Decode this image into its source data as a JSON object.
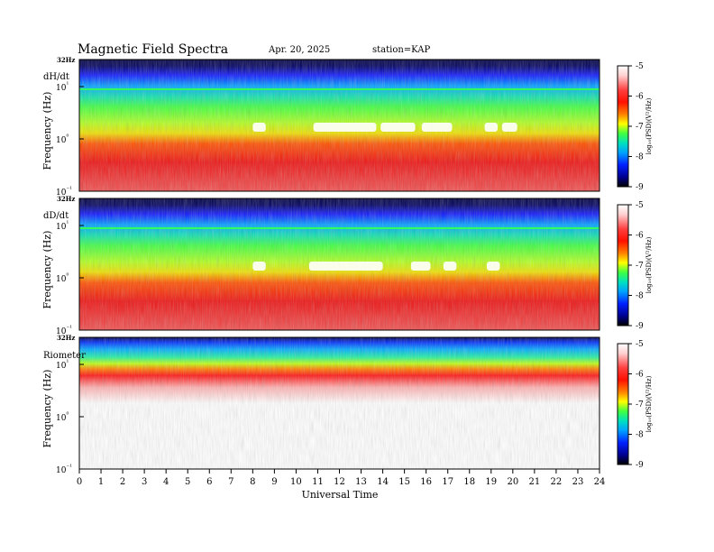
{
  "header": {
    "title": "Magnetic Field Spectra",
    "date": "Apr. 20, 2025",
    "station": "station=KAP"
  },
  "chart_data": [
    {
      "type": "heatmap",
      "panel_label": "dH/dt",
      "ylabel": "Frequency (Hz)",
      "y_scale": "log",
      "y_top_label": "32Hz",
      "y_ticks": [
        "10¹",
        "10⁰",
        "10⁻¹"
      ],
      "xlim": [
        0,
        24
      ],
      "colorbar": {
        "label": "log₁₀(PSD)(V²/Hz)",
        "ticks": [
          "-5",
          "-6",
          "-7",
          "-8",
          "-9"
        ],
        "range": [
          -9,
          -5
        ]
      },
      "features": [
        {
          "start": 8.0,
          "end": 8.6,
          "level": "white"
        },
        {
          "start": 10.8,
          "end": 13.7,
          "level": "white"
        },
        {
          "start": 13.9,
          "end": 15.5,
          "level": "white"
        },
        {
          "start": 15.8,
          "end": 17.2,
          "level": "white"
        },
        {
          "start": 18.7,
          "end": 19.3,
          "level": "white"
        },
        {
          "start": 19.5,
          "end": 20.2,
          "level": "white"
        }
      ]
    },
    {
      "type": "heatmap",
      "panel_label": "dD/dt",
      "ylabel": "Frequency (Hz)",
      "y_scale": "log",
      "y_top_label": "32Hz",
      "y_ticks": [
        "10¹",
        "10⁰",
        "10⁻¹"
      ],
      "xlim": [
        0,
        24
      ],
      "colorbar": {
        "label": "log₁₀(PSD)(V²/Hz)",
        "ticks": [
          "-5",
          "-6",
          "-7",
          "-8",
          "-9"
        ],
        "range": [
          -9,
          -5
        ]
      },
      "features": [
        {
          "start": 8.0,
          "end": 8.6,
          "level": "white"
        },
        {
          "start": 10.6,
          "end": 14.0,
          "level": "white"
        },
        {
          "start": 15.3,
          "end": 16.2,
          "level": "white"
        },
        {
          "start": 16.8,
          "end": 17.4,
          "level": "white"
        },
        {
          "start": 18.8,
          "end": 19.4,
          "level": "white"
        }
      ]
    },
    {
      "type": "heatmap",
      "panel_label": "Riometer",
      "ylabel": "Frequency (Hz)",
      "y_scale": "log",
      "y_top_label": "32Hz",
      "y_ticks": [
        "10¹",
        "10⁰",
        "10⁻¹"
      ],
      "xlim": [
        0,
        24
      ],
      "colorbar": {
        "label": "log₁₀(PSD)(V²/Hz)",
        "ticks": [
          "-5",
          "-6",
          "-7",
          "-8",
          "-9"
        ],
        "range": [
          -9,
          -5
        ]
      },
      "features": []
    }
  ],
  "x_axis": {
    "label": "Universal Time",
    "ticks": [
      "0",
      "1",
      "2",
      "3",
      "4",
      "5",
      "6",
      "7",
      "8",
      "9",
      "10",
      "11",
      "12",
      "13",
      "14",
      "15",
      "16",
      "17",
      "18",
      "19",
      "20",
      "21",
      "22",
      "23",
      "24"
    ]
  }
}
